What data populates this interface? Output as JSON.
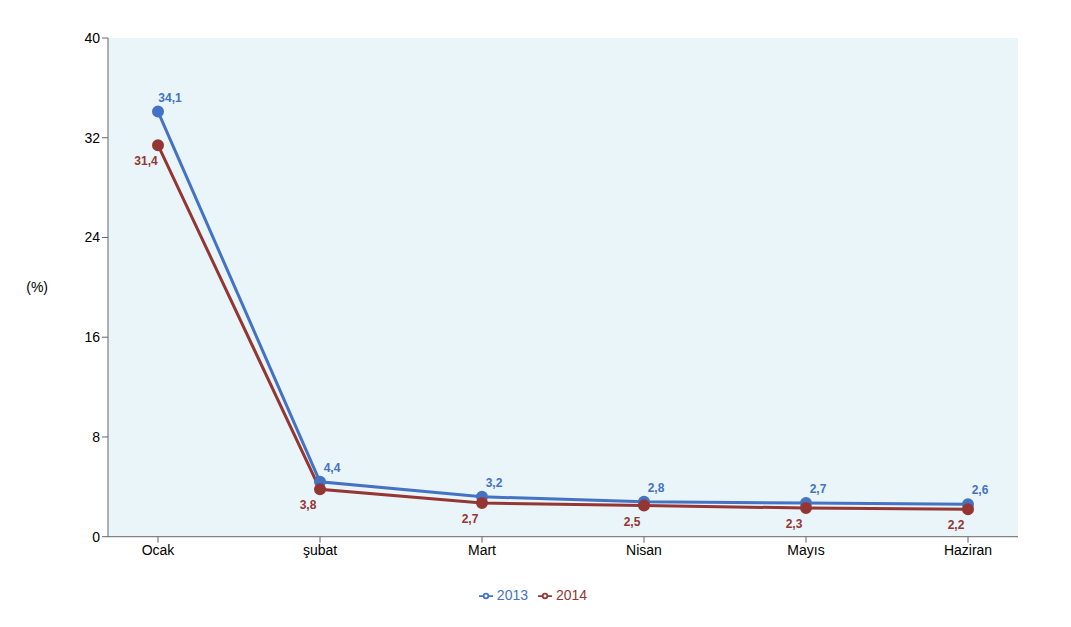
{
  "chart_data": {
    "type": "line",
    "ylabel": "(%)",
    "categories": [
      "Ocak",
      "şubat",
      "Mart",
      "Nisan",
      "Mayıs",
      "Haziran"
    ],
    "series": [
      {
        "name": "2013",
        "color": "#4472C4",
        "marker": "circle",
        "values": [
          34.1,
          4.4,
          3.2,
          2.8,
          2.7,
          2.6
        ],
        "value_labels": [
          "34,1",
          "4,4",
          "3,2",
          "2,8",
          "2,7",
          "2,6"
        ]
      },
      {
        "name": "2014",
        "color": "#943634",
        "marker": "circle",
        "values": [
          31.4,
          3.8,
          2.7,
          2.5,
          2.3,
          2.2
        ],
        "value_labels": [
          "31,4",
          "3,8",
          "2,7",
          "2,5",
          "2,3",
          "2,2"
        ]
      }
    ],
    "ylim": [
      0,
      40
    ],
    "yticks": [
      0,
      8,
      16,
      24,
      32,
      40
    ],
    "grid": false,
    "legend": "bottom",
    "data_labels": true
  }
}
